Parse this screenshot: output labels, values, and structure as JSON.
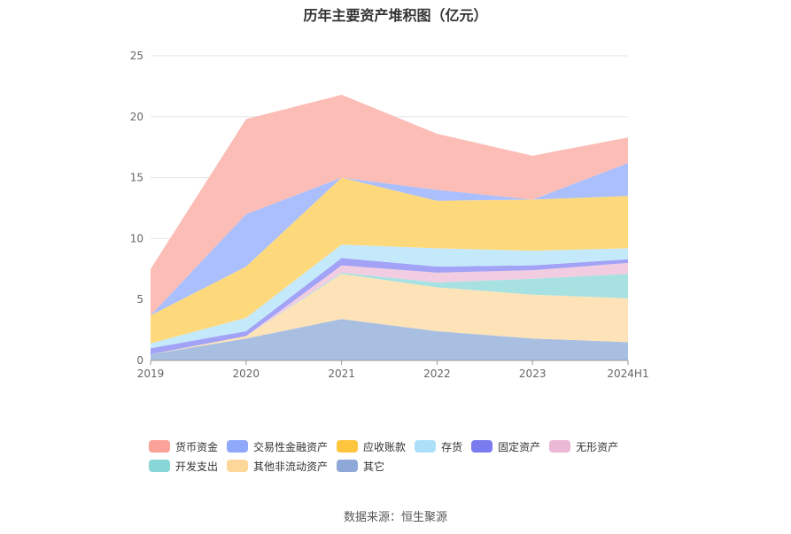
{
  "chart_data": {
    "type": "area",
    "stacked": true,
    "title": "历年主要资产堆积图（亿元）",
    "categories": [
      "2019",
      "2020",
      "2021",
      "2022",
      "2023",
      "2024H1"
    ],
    "ylim": [
      0,
      25
    ],
    "yticks": [
      "0",
      "5",
      "10",
      "15",
      "20",
      "25"
    ],
    "legend_position": "bottom",
    "series": [
      {
        "name": "其它",
        "color": "#a9bfe2",
        "values": [
          0.5,
          1.8,
          3.4,
          2.4,
          1.8,
          1.5
        ]
      },
      {
        "name": "其他非流动资产",
        "color": "#fde3b7",
        "values": [
          0.0,
          0.2,
          3.7,
          3.6,
          3.6,
          3.6
        ]
      },
      {
        "name": "开发支出",
        "color": "#a7e1e2",
        "values": [
          0.0,
          0.0,
          0.1,
          0.4,
          1.3,
          2.0
        ]
      },
      {
        "name": "无形资产",
        "color": "#f2cde1",
        "values": [
          0.0,
          0.0,
          0.6,
          0.8,
          0.7,
          0.9
        ]
      },
      {
        "name": "固定资产",
        "color": "#a2a2f6",
        "values": [
          0.5,
          0.4,
          0.6,
          0.5,
          0.4,
          0.3
        ]
      },
      {
        "name": "存货",
        "color": "#c4e9fb",
        "values": [
          0.4,
          1.1,
          1.1,
          1.5,
          1.2,
          0.9
        ]
      },
      {
        "name": "应收账款",
        "color": "#fed97c",
        "values": [
          2.3,
          4.2,
          5.5,
          3.9,
          4.2,
          4.3
        ]
      },
      {
        "name": "交易性金融资产",
        "color": "#aabffc",
        "values": [
          0.0,
          4.3,
          0.0,
          0.9,
          0.0,
          2.7
        ]
      },
      {
        "name": "货币资金",
        "color": "#fbbdb6",
        "values": [
          3.8,
          7.8,
          6.8,
          4.6,
          3.6,
          2.1
        ]
      }
    ]
  },
  "legend": [
    {
      "label": "货币资金",
      "color": "#fba399"
    },
    {
      "label": "交易性金融资产",
      "color": "#8fa8fa"
    },
    {
      "label": "应收账款",
      "color": "#fec53e"
    },
    {
      "label": "存货",
      "color": "#abe0f8"
    },
    {
      "label": "固定资产",
      "color": "#7b7bf0"
    },
    {
      "label": "无形资产",
      "color": "#ebb8d6"
    },
    {
      "label": "开发支出",
      "color": "#88d6d8"
    },
    {
      "label": "其他非流动资产",
      "color": "#fdd79a"
    },
    {
      "label": "其它",
      "color": "#8ea8d8"
    }
  ],
  "source": "数据来源：恒生聚源"
}
